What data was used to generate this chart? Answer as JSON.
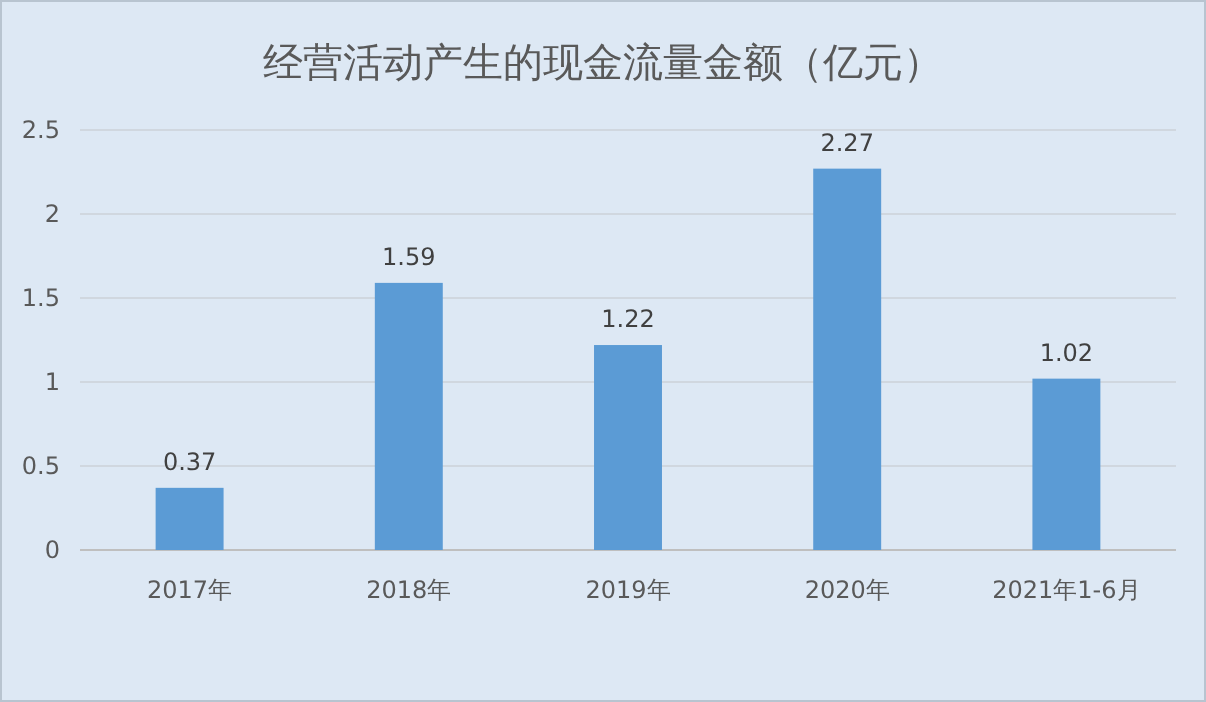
{
  "chart_data": {
    "type": "bar",
    "title": "经营活动产生的现金流量金额（亿元）",
    "categories": [
      "2017年",
      "2018年",
      "2019年",
      "2020年",
      "2021年1-6月"
    ],
    "values": [
      0.37,
      1.59,
      1.22,
      2.27,
      1.02
    ],
    "color": "#5b9bd5",
    "ylim": [
      0,
      2.5
    ],
    "yticks": [
      0,
      0.5,
      1,
      1.5,
      2,
      2.5
    ],
    "grid": "y",
    "data_labels": true
  }
}
